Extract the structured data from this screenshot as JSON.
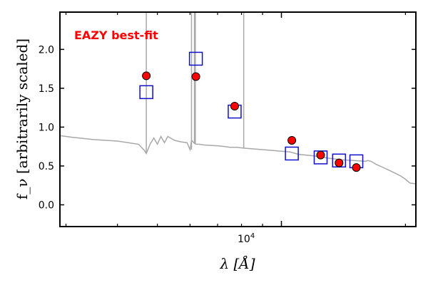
{
  "chart_data": {
    "type": "scatter",
    "title": "EAZY best-fit",
    "xlabel": "λ [Å]",
    "ylabel": "f_ν [arbitrarily scaled]",
    "xscale": "log",
    "xlim": [
      2900,
      21200
    ],
    "ylim": [
      -0.28,
      2.48
    ],
    "yticks": [
      0.0,
      0.5,
      1.0,
      1.5,
      2.0
    ],
    "ytick_labels": [
      "0.0",
      "0.5",
      "1.0",
      "1.5",
      "2.0"
    ],
    "xtick_label": "10^4",
    "xtick_base": "10",
    "xtick_exponent": "4",
    "colors": {
      "title": "#ff0000",
      "model_points": "#ff0000",
      "observed_boxes": "#1010cc",
      "sed_line": "#a8a8a8"
    },
    "series": [
      {
        "name": "Observed photometry",
        "marker": "open-square",
        "x": [
          4700,
          6200,
          7700,
          10600,
          12450,
          13800,
          15200
        ],
        "y": [
          1.45,
          1.88,
          1.2,
          0.66,
          0.61,
          0.57,
          0.56
        ]
      },
      {
        "name": "Model photometry",
        "marker": "filled-circle",
        "x": [
          4700,
          6200,
          7700,
          10600,
          12450,
          13800,
          15200
        ],
        "y": [
          1.66,
          1.65,
          1.27,
          0.83,
          0.64,
          0.54,
          0.48
        ]
      },
      {
        "name": "Best-fit SED",
        "marker": "line",
        "x": [
          2900,
          3100,
          3500,
          4000,
          4500,
          4650,
          4700,
          4800,
          4900,
          5000,
          5100,
          5200,
          5300,
          5500,
          5700,
          5900,
          6000,
          6050,
          6150,
          6200,
          6300,
          6500,
          7000,
          7300,
          7500,
          7800,
          8100,
          8500,
          9000,
          9500,
          10000,
          10500,
          11000,
          12000,
          13000,
          14000,
          15000,
          16000,
          16200,
          16500,
          17000,
          17500,
          18500,
          19000,
          19500,
          20000,
          20500,
          21200
        ],
        "y": [
          0.89,
          0.87,
          0.84,
          0.82,
          0.78,
          0.7,
          0.66,
          0.78,
          0.86,
          0.78,
          0.88,
          0.8,
          0.88,
          0.83,
          0.81,
          0.8,
          0.71,
          0.83,
          0.79,
          0.78,
          0.78,
          0.77,
          0.76,
          0.75,
          0.74,
          0.74,
          0.73,
          0.72,
          0.71,
          0.7,
          0.69,
          0.68,
          0.65,
          0.63,
          0.6,
          0.58,
          0.57,
          0.56,
          0.57,
          0.56,
          0.52,
          0.49,
          0.43,
          0.4,
          0.37,
          0.33,
          0.28,
          0.27
        ]
      },
      {
        "name": "Emission lines",
        "marker": "vline",
        "lines": [
          {
            "x": 4700,
            "y_top": 2.48,
            "y_bottom": 0.66
          },
          {
            "x": 6050,
            "y_top": 2.48,
            "y_bottom": 0.71
          },
          {
            "x": 6150,
            "y_top": 2.48,
            "y_bottom": 0.79
          },
          {
            "x": 6180,
            "y_top": 2.48,
            "y_bottom": 0.78
          },
          {
            "x": 8100,
            "y_top": 2.48,
            "y_bottom": 0.73
          }
        ]
      }
    ]
  }
}
